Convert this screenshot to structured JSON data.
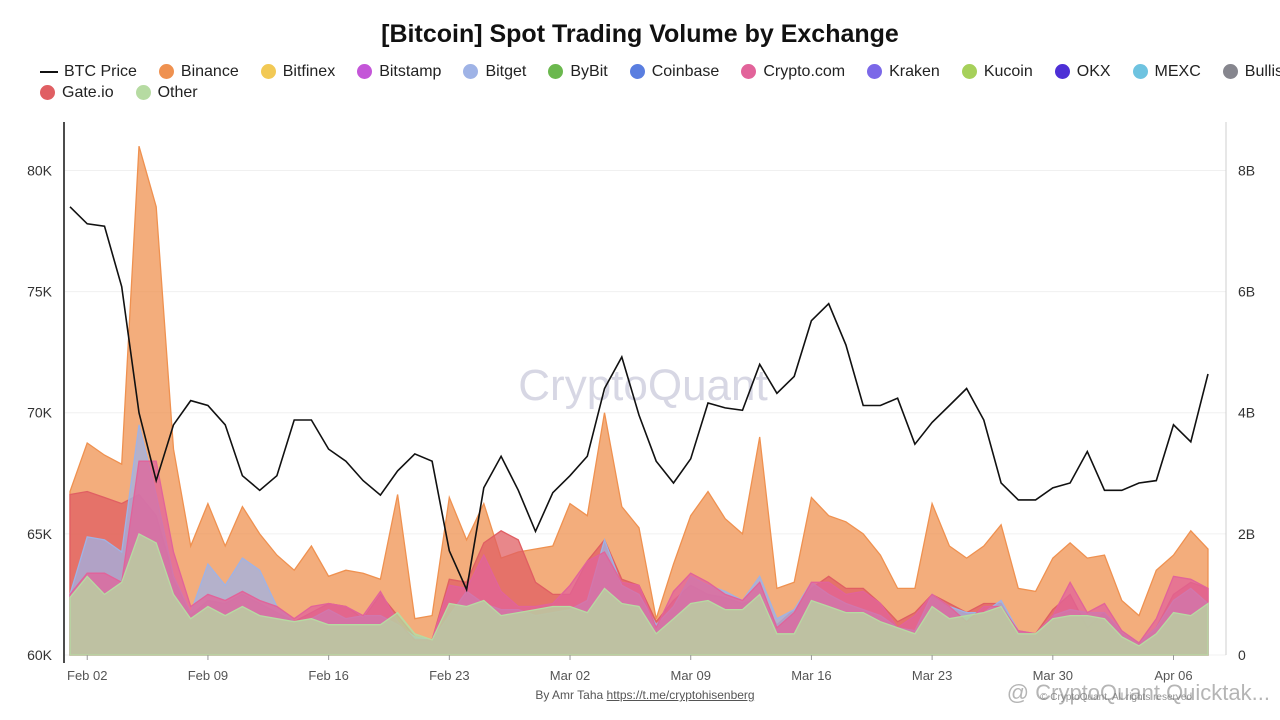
{
  "title": "[Bitcoin] Spot Trading Volume by Exchange",
  "legend": [
    {
      "name": "BTC Price",
      "type": "line",
      "color": "#111111"
    },
    {
      "name": "Binance",
      "color": "#ef9150"
    },
    {
      "name": "Bitfinex",
      "color": "#f2c955"
    },
    {
      "name": "Bitstamp",
      "color": "#c456d8"
    },
    {
      "name": "Bitget",
      "color": "#9fb3e6"
    },
    {
      "name": "ByBit",
      "color": "#6bb84e"
    },
    {
      "name": "Coinbase",
      "color": "#5a7ee0"
    },
    {
      "name": "Crypto.com",
      "color": "#e2639a"
    },
    {
      "name": "Kraken",
      "color": "#7b68e8"
    },
    {
      "name": "Kucoin",
      "color": "#a6d05a"
    },
    {
      "name": "OKX",
      "color": "#4d2fd6"
    },
    {
      "name": "MEXC",
      "color": "#6ec3e0"
    },
    {
      "name": "Bullish",
      "color": "#86868e"
    },
    {
      "name": "Gate.io",
      "color": "#e05f63"
    },
    {
      "name": "Other",
      "color": "#b6dba2"
    }
  ],
  "watermark": "CryptoQuant",
  "footer": {
    "prefix": "By Amr Taha",
    "link": "https://t.me/cryptohisenberg"
  },
  "bottom_mark": "@ CryptoQuant Quicktak...",
  "copyright": "© CryptoQuant. All rights reserved",
  "chart_data": {
    "type": "area",
    "x": [
      "Feb 01",
      "Feb 02",
      "Feb 03",
      "Feb 04",
      "Feb 05",
      "Feb 06",
      "Feb 07",
      "Feb 08",
      "Feb 09",
      "Feb 10",
      "Feb 11",
      "Feb 12",
      "Feb 13",
      "Feb 14",
      "Feb 15",
      "Feb 16",
      "Feb 17",
      "Feb 18",
      "Feb 19",
      "Feb 20",
      "Feb 21",
      "Feb 22",
      "Feb 23",
      "Feb 24",
      "Feb 25",
      "Feb 26",
      "Feb 27",
      "Feb 28",
      "Mar 01",
      "Mar 02",
      "Mar 03",
      "Mar 04",
      "Mar 05",
      "Mar 06",
      "Mar 07",
      "Mar 08",
      "Mar 09",
      "Mar 10",
      "Mar 11",
      "Mar 12",
      "Mar 13",
      "Mar 14",
      "Mar 15",
      "Mar 16",
      "Mar 17",
      "Mar 18",
      "Mar 19",
      "Mar 20",
      "Mar 21",
      "Mar 22",
      "Mar 23",
      "Mar 24",
      "Mar 25",
      "Mar 26",
      "Mar 27",
      "Mar 28",
      "Mar 29",
      "Mar 30",
      "Mar 31",
      "Apr 01",
      "Apr 02",
      "Apr 03",
      "Apr 04",
      "Apr 05",
      "Apr 06",
      "Apr 07",
      "Apr 08"
    ],
    "x_ticks": [
      "Feb 02",
      "Feb 09",
      "Feb 16",
      "Feb 23",
      "Mar 02",
      "Mar 09",
      "Mar 16",
      "Mar 23",
      "Mar 30",
      "Apr 06"
    ],
    "y_left": {
      "label": "BTC Price",
      "min": 60000,
      "max": 82000,
      "ticks": [
        60000,
        65000,
        70000,
        75000,
        80000
      ],
      "tick_labels": [
        "60K",
        "65K",
        "70K",
        "75K",
        "80K"
      ]
    },
    "y_right": {
      "label": "Volume",
      "min": 0,
      "max": 8800000000,
      "ticks": [
        0,
        2000000000,
        4000000000,
        6000000000,
        8000000000
      ],
      "tick_labels": [
        "0",
        "2B",
        "4B",
        "6B",
        "8B"
      ]
    },
    "price": [
      78500,
      77800,
      77700,
      75200,
      70000,
      67200,
      69500,
      70500,
      70300,
      69500,
      67400,
      66800,
      67400,
      69700,
      69700,
      68500,
      68000,
      67200,
      66600,
      67600,
      68300,
      68000,
      64300,
      62700,
      66900,
      68200,
      66800,
      65100,
      66700,
      67400,
      68200,
      71000,
      72300,
      69900,
      68000,
      67100,
      68100,
      70400,
      70200,
      70100,
      72000,
      70800,
      71500,
      73800,
      74500,
      72800,
      70300,
      70300,
      70600,
      68700,
      69600,
      70300,
      71000,
      69700,
      67100,
      66400,
      66400,
      66900,
      67100,
      68400,
      66800,
      66800,
      67100,
      67200,
      69500,
      68800,
      71600
    ],
    "series": [
      {
        "name": "Binance",
        "values": [
          2700,
          3500,
          3300,
          3150,
          8400,
          7400,
          3400,
          1800,
          2500,
          1800,
          2450,
          2000,
          1650,
          1400,
          1800,
          1300,
          1400,
          1350,
          1250,
          2650,
          600,
          650,
          2600,
          1900,
          2500,
          1600,
          1700,
          1750,
          1800,
          2500,
          2300,
          4000,
          2450,
          2100,
          600,
          1500,
          2300,
          2700,
          2250,
          2000,
          3600,
          1100,
          1200,
          2600,
          2300,
          2200,
          2000,
          1650,
          1100,
          1100,
          2500,
          1800,
          1600,
          1800,
          2150,
          1100,
          1050,
          1600,
          1850,
          1600,
          1650,
          900,
          650,
          1400,
          1650,
          2050,
          1750
        ]
      },
      {
        "name": "Gate.io",
        "values": [
          2650,
          2700,
          2600,
          2500,
          2650,
          2300,
          1300,
          650,
          900,
          850,
          1000,
          850,
          700,
          550,
          700,
          850,
          800,
          600,
          1000,
          650,
          300,
          250,
          1250,
          1200,
          1850,
          2050,
          1900,
          1200,
          1000,
          1000,
          1550,
          1900,
          1250,
          1150,
          550,
          900,
          1150,
          1000,
          950,
          850,
          950,
          500,
          750,
          1100,
          1300,
          1100,
          1100,
          850,
          550,
          700,
          1000,
          850,
          700,
          850,
          850,
          400,
          350,
          750,
          1000,
          450,
          700,
          350,
          200,
          450,
          1000,
          1200,
          1100
        ]
      },
      {
        "name": "Bitget",
        "values": [
          1000,
          1950,
          1900,
          1700,
          3800,
          2650,
          1300,
          700,
          1500,
          1150,
          1600,
          1400,
          800,
          550,
          600,
          750,
          600,
          650,
          650,
          500,
          300,
          250,
          650,
          1050,
          850,
          750,
          750,
          650,
          700,
          750,
          900,
          1900,
          1150,
          1000,
          500,
          800,
          1300,
          1150,
          1050,
          900,
          1300,
          600,
          750,
          1200,
          1000,
          850,
          750,
          650,
          450,
          400,
          1000,
          800,
          700,
          700,
          900,
          400,
          350,
          650,
          750,
          700,
          700,
          400,
          200,
          450,
          900,
          1100,
          850
        ]
      },
      {
        "name": "Crypto.com",
        "values": [
          1000,
          1350,
          1350,
          1200,
          3200,
          3200,
          1700,
          800,
          1000,
          900,
          1050,
          900,
          800,
          600,
          800,
          850,
          800,
          650,
          1050,
          550,
          250,
          250,
          1150,
          1100,
          1650,
          1050,
          800,
          800,
          850,
          1150,
          1550,
          1700,
          1200,
          1150,
          450,
          1050,
          1350,
          1200,
          1000,
          900,
          1200,
          450,
          700,
          1200,
          1200,
          1000,
          1050,
          850,
          450,
          650,
          1000,
          800,
          550,
          800,
          800,
          400,
          350,
          650,
          1200,
          700,
          850,
          400,
          200,
          600,
          1300,
          1250,
          1100
        ]
      },
      {
        "name": "Other",
        "values": [
          950,
          1300,
          1000,
          1200,
          2000,
          1850,
          1000,
          600,
          800,
          650,
          800,
          650,
          600,
          550,
          600,
          500,
          500,
          500,
          500,
          700,
          350,
          250,
          850,
          800,
          900,
          650,
          700,
          750,
          800,
          800,
          700,
          1100,
          850,
          800,
          350,
          600,
          850,
          900,
          750,
          750,
          1000,
          350,
          350,
          900,
          800,
          700,
          700,
          550,
          450,
          350,
          800,
          600,
          650,
          700,
          800,
          350,
          350,
          600,
          650,
          650,
          600,
          300,
          150,
          350,
          700,
          650,
          850
        ]
      }
    ]
  }
}
